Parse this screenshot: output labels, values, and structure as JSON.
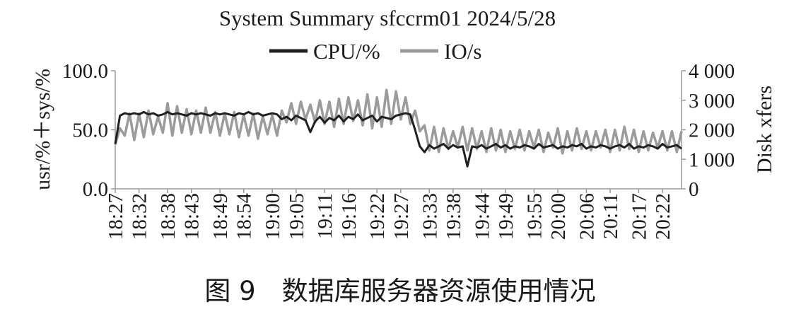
{
  "chart_data": {
    "type": "line",
    "title": "System Summary sfccrm01 2024/5/28",
    "ylabel": "usr/%＋sys/%",
    "y2label": "Disk xfers",
    "ylim": [
      0,
      100
    ],
    "y2lim": [
      0,
      4000
    ],
    "yticks": [
      "0.0",
      "50.0",
      "100.0"
    ],
    "y2ticks": [
      "0",
      "1 000",
      "2 000",
      "3 000",
      "4 000"
    ],
    "legend_position": "top-center",
    "grid": false,
    "x_tick_labels": [
      "18:27",
      "18:32",
      "18:38",
      "18:43",
      "18:49",
      "18:54",
      "19:00",
      "19:05",
      "19:11",
      "19:16",
      "19:22",
      "19:27",
      "19:33",
      "19:38",
      "19:44",
      "19:49",
      "19:55",
      "20:00",
      "20:06",
      "20:11",
      "20:17",
      "20:22"
    ],
    "x_start": "18:27",
    "x_end": "20:26",
    "x_interval_minutes": 1,
    "series": [
      {
        "name": "CPU/%",
        "axis": "left",
        "color": "#231f20",
        "values": [
          38,
          62,
          64,
          63,
          64,
          63,
          65,
          63,
          64,
          62,
          63,
          65,
          63,
          64,
          63,
          62,
          64,
          63,
          64,
          63,
          62,
          64,
          63,
          64,
          63,
          62,
          64,
          63,
          65,
          63,
          64,
          62,
          63,
          64,
          63,
          59,
          61,
          58,
          62,
          60,
          58,
          48,
          57,
          61,
          56,
          60,
          58,
          62,
          57,
          61,
          59,
          63,
          58,
          60,
          62,
          57,
          61,
          60,
          59,
          62,
          63,
          64,
          63,
          50,
          36,
          31,
          37,
          34,
          36,
          38,
          34,
          37,
          35,
          36,
          19,
          36,
          35,
          37,
          34,
          36,
          38,
          35,
          37,
          34,
          36,
          35,
          37,
          36,
          34,
          38,
          35,
          36,
          37,
          34,
          36,
          35,
          37,
          36,
          38,
          34,
          36,
          35,
          37,
          36,
          34,
          36,
          37,
          35,
          38,
          34,
          36,
          35,
          37,
          36,
          34,
          38,
          35,
          36,
          37,
          34
        ]
      },
      {
        "name": "IO/s",
        "axis": "right",
        "color": "#9b9b9b",
        "values": [
          1500,
          2050,
          1800,
          2550,
          1650,
          2550,
          1750,
          2650,
          1850,
          2450,
          1900,
          2900,
          1800,
          2800,
          1900,
          2700,
          1850,
          2650,
          1900,
          2750,
          1900,
          2600,
          1800,
          2550,
          1850,
          2600,
          1750,
          2500,
          1800,
          2550,
          1700,
          2450,
          1850,
          2500,
          1800,
          2650,
          2250,
          2900,
          2200,
          2950,
          2350,
          2850,
          2250,
          3000,
          2200,
          2950,
          2100,
          3050,
          2200,
          3100,
          2300,
          3000,
          2150,
          3200,
          2050,
          3100,
          2100,
          3350,
          2200,
          3300,
          2350,
          3100,
          2200,
          2650,
          1950,
          2150,
          1300,
          2100,
          1250,
          2050,
          1350,
          1950,
          1400,
          2100,
          1300,
          2050,
          1350,
          1950,
          1250,
          2050,
          1300,
          2000,
          1250,
          1950,
          1350,
          2000,
          1300,
          1950,
          1400,
          2000,
          1250,
          1900,
          1400,
          2050,
          1200,
          1950,
          1300,
          2050,
          1350,
          1950,
          1300,
          1950,
          1400,
          2000,
          1250,
          2000,
          1300,
          2100,
          1350,
          2000,
          1250,
          1950,
          1300,
          1900,
          1400,
          1950,
          1300,
          1950,
          1250,
          1950
        ]
      }
    ]
  },
  "caption": "图 9　数据库服务器资源使用情况"
}
